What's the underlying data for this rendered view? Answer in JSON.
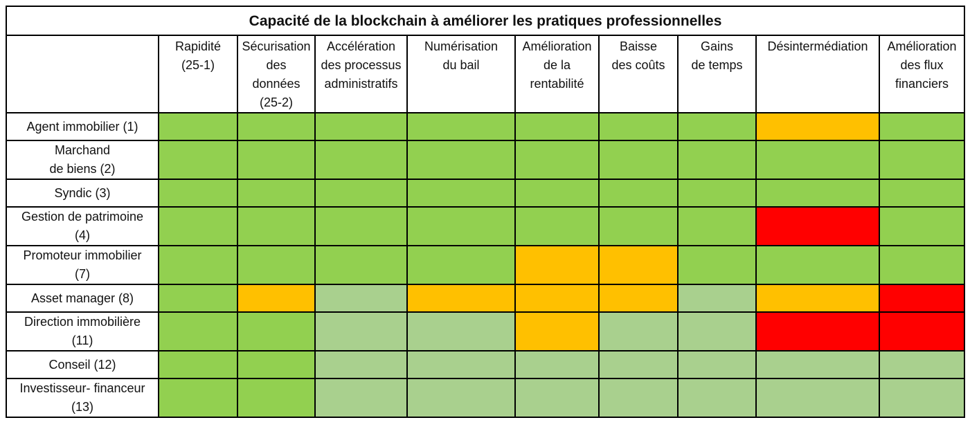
{
  "title": "Capacité de la blockchain à améliorer les pratiques professionnelles",
  "colors": {
    "G": "#92d050",
    "L": "#a9d08e",
    "O": "#ffc000",
    "R": "#ff0000"
  },
  "legend_codes": {
    "G": "green",
    "L": "light-green",
    "O": "orange",
    "R": "red"
  },
  "columns": [
    "Rapidité (25-1)",
    "Sécurisation des données (25-2)",
    "Accélération des processus administratifs",
    "Numérisation du bail",
    "Amélioration de la rentabilité",
    "Baisse des coûts",
    "Gains de temps",
    "Désintermédiation",
    "Amélioration des flux financiers"
  ],
  "rows": [
    {
      "label": "Agent immobilier (1)",
      "cells": [
        "G",
        "G",
        "G",
        "G",
        "G",
        "G",
        "G",
        "O",
        "G"
      ]
    },
    {
      "label": "Marchand de biens (2)",
      "cells": [
        "G",
        "G",
        "G",
        "G",
        "G",
        "G",
        "G",
        "G",
        "G"
      ]
    },
    {
      "label": "Syndic (3)",
      "cells": [
        "G",
        "G",
        "G",
        "G",
        "G",
        "G",
        "G",
        "G",
        "G"
      ]
    },
    {
      "label": "Gestion de patrimoine (4)",
      "cells": [
        "G",
        "G",
        "G",
        "G",
        "G",
        "G",
        "G",
        "R",
        "G"
      ]
    },
    {
      "label": "Promoteur immobilier (7)",
      "cells": [
        "G",
        "G",
        "G",
        "G",
        "O",
        "O",
        "G",
        "G",
        "G"
      ]
    },
    {
      "label": "Asset manager (8)",
      "cells": [
        "G",
        "O",
        "L",
        "O",
        "O",
        "O",
        "L",
        "O",
        "R"
      ]
    },
    {
      "label": "Direction immobilière (11)",
      "cells": [
        "G",
        "G",
        "L",
        "L",
        "O",
        "L",
        "L",
        "R",
        "R"
      ]
    },
    {
      "label": "Conseil (12)",
      "cells": [
        "G",
        "G",
        "L",
        "L",
        "L",
        "L",
        "L",
        "L",
        "L"
      ]
    },
    {
      "label": "Investisseur- financeur (13)",
      "cells": [
        "G",
        "G",
        "L",
        "L",
        "L",
        "L",
        "L",
        "L",
        "L"
      ]
    }
  ]
}
